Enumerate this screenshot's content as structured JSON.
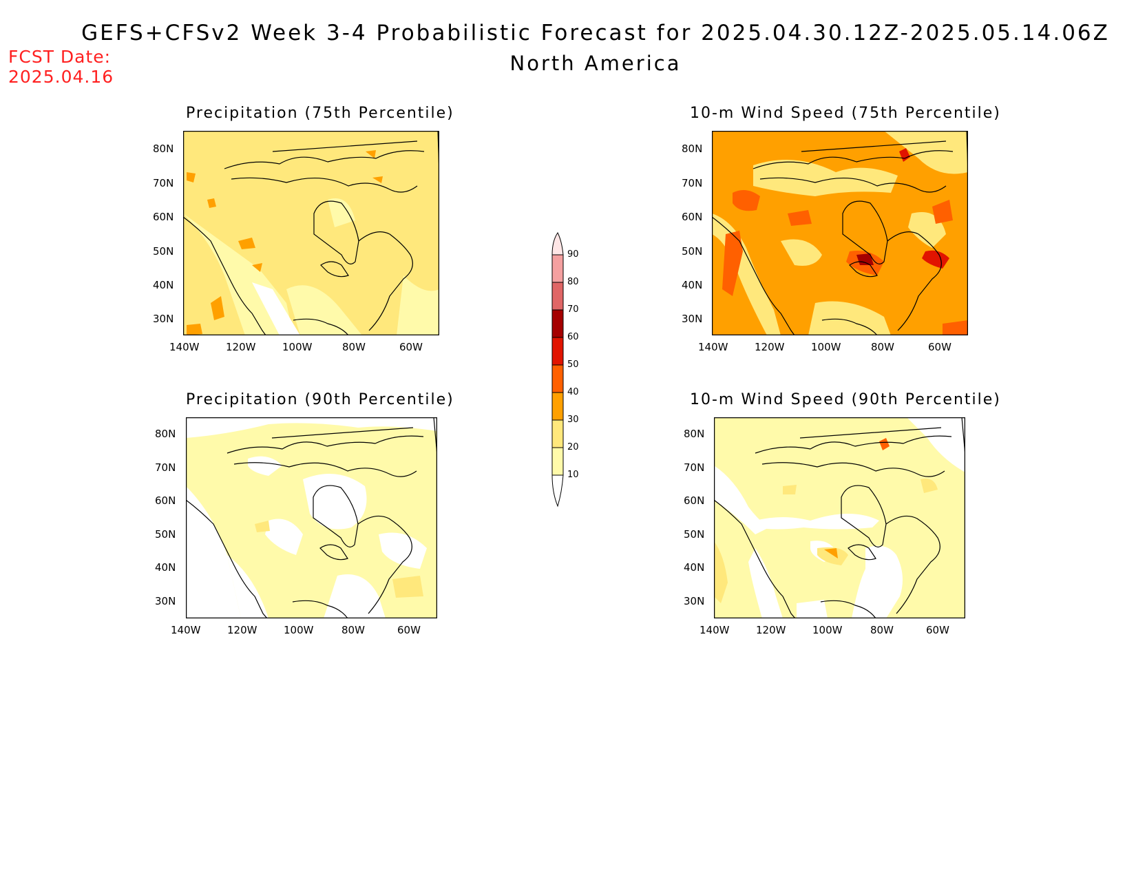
{
  "title": {
    "line1": "GEFS+CFSv2 Week 3-4 Probabilistic Forecast for 2025.04.30.12Z-2025.05.14.06Z",
    "line2": "North America"
  },
  "forecast_date": {
    "label": "FCST Date:",
    "value": "2025.04.16"
  },
  "panels": [
    {
      "id": "precip75",
      "title": "Precipitation (75th Percentile)"
    },
    {
      "id": "wind75",
      "title": "10-m Wind Speed (75th Percentile)"
    },
    {
      "id": "precip90",
      "title": "Precipitation (90th Percentile)"
    },
    {
      "id": "wind90",
      "title": "10-m Wind Speed (90th Percentile)"
    }
  ],
  "axes": {
    "lat_labels": [
      "80N",
      "70N",
      "60N",
      "50N",
      "40N",
      "30N"
    ],
    "lon_labels": [
      "140W",
      "120W",
      "100W",
      "80W",
      "60W"
    ]
  },
  "colorbar": {
    "levels": [
      "10",
      "20",
      "30",
      "40",
      "50",
      "60",
      "70",
      "80",
      "90"
    ],
    "colors": [
      "#fffaaa",
      "#ffe87c",
      "#ffa000",
      "#ff6000",
      "#e11400",
      "#a50000",
      "#e06666",
      "#f4a0a0",
      "#ffe6e6"
    ]
  }
}
